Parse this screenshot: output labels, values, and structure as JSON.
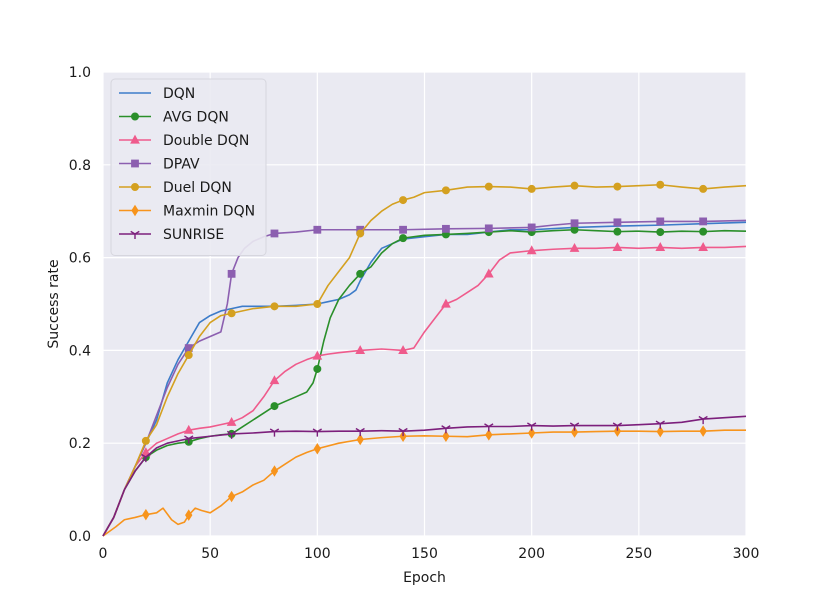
{
  "chart_data": {
    "type": "line",
    "title": "",
    "xlabel": "Epoch",
    "ylabel": "Success rate",
    "xlim": [
      0,
      300
    ],
    "ylim": [
      0.0,
      1.0
    ],
    "xticks": [
      0,
      50,
      100,
      150,
      200,
      250,
      300
    ],
    "yticks": [
      "0.0",
      "0.2",
      "0.4",
      "0.6",
      "0.8",
      "1.0"
    ],
    "grid": true,
    "legend_position": "top-left",
    "background": "#eaeaf2",
    "series": [
      {
        "name": "DQN",
        "color": "#3d7cc9",
        "marker": "none",
        "points": [
          [
            0,
            0.0
          ],
          [
            5,
            0.04
          ],
          [
            10,
            0.1
          ],
          [
            15,
            0.15
          ],
          [
            20,
            0.2
          ],
          [
            25,
            0.25
          ],
          [
            30,
            0.33
          ],
          [
            35,
            0.38
          ],
          [
            40,
            0.42
          ],
          [
            45,
            0.46
          ],
          [
            50,
            0.475
          ],
          [
            55,
            0.485
          ],
          [
            60,
            0.49
          ],
          [
            65,
            0.495
          ],
          [
            70,
            0.495
          ],
          [
            80,
            0.495
          ],
          [
            90,
            0.497
          ],
          [
            100,
            0.5
          ],
          [
            105,
            0.505
          ],
          [
            110,
            0.51
          ],
          [
            115,
            0.52
          ],
          [
            118,
            0.53
          ],
          [
            120,
            0.55
          ],
          [
            125,
            0.59
          ],
          [
            130,
            0.62
          ],
          [
            135,
            0.63
          ],
          [
            140,
            0.64
          ],
          [
            150,
            0.645
          ],
          [
            160,
            0.65
          ],
          [
            170,
            0.65
          ],
          [
            180,
            0.655
          ],
          [
            190,
            0.66
          ],
          [
            200,
            0.66
          ],
          [
            220,
            0.665
          ],
          [
            240,
            0.668
          ],
          [
            260,
            0.67
          ],
          [
            280,
            0.673
          ],
          [
            300,
            0.676
          ]
        ]
      },
      {
        "name": "AVG DQN",
        "color": "#2a8f2a",
        "marker": "circle",
        "marker_x": [
          20,
          40,
          60,
          80,
          100,
          120,
          140,
          160,
          180,
          200,
          220,
          240,
          260,
          280
        ],
        "points": [
          [
            0,
            0.0
          ],
          [
            5,
            0.04
          ],
          [
            10,
            0.1
          ],
          [
            15,
            0.14
          ],
          [
            20,
            0.17
          ],
          [
            25,
            0.185
          ],
          [
            30,
            0.195
          ],
          [
            35,
            0.2
          ],
          [
            40,
            0.203
          ],
          [
            45,
            0.21
          ],
          [
            50,
            0.215
          ],
          [
            55,
            0.218
          ],
          [
            60,
            0.22
          ],
          [
            65,
            0.235
          ],
          [
            70,
            0.25
          ],
          [
            75,
            0.265
          ],
          [
            80,
            0.28
          ],
          [
            85,
            0.29
          ],
          [
            90,
            0.3
          ],
          [
            95,
            0.31
          ],
          [
            98,
            0.33
          ],
          [
            100,
            0.36
          ],
          [
            103,
            0.42
          ],
          [
            106,
            0.47
          ],
          [
            110,
            0.51
          ],
          [
            115,
            0.54
          ],
          [
            120,
            0.565
          ],
          [
            125,
            0.58
          ],
          [
            130,
            0.61
          ],
          [
            135,
            0.63
          ],
          [
            140,
            0.642
          ],
          [
            150,
            0.648
          ],
          [
            160,
            0.65
          ],
          [
            170,
            0.652
          ],
          [
            180,
            0.655
          ],
          [
            190,
            0.658
          ],
          [
            200,
            0.655
          ],
          [
            210,
            0.658
          ],
          [
            220,
            0.66
          ],
          [
            230,
            0.658
          ],
          [
            240,
            0.656
          ],
          [
            250,
            0.657
          ],
          [
            260,
            0.655
          ],
          [
            270,
            0.657
          ],
          [
            280,
            0.656
          ],
          [
            290,
            0.658
          ],
          [
            300,
            0.657
          ]
        ]
      },
      {
        "name": "Double DQN",
        "color": "#ef5b8c",
        "marker": "triangle",
        "marker_x": [
          20,
          40,
          60,
          80,
          100,
          120,
          140,
          160,
          180,
          200,
          220,
          240,
          260,
          280
        ],
        "points": [
          [
            0,
            0.0
          ],
          [
            5,
            0.04
          ],
          [
            10,
            0.1
          ],
          [
            15,
            0.15
          ],
          [
            20,
            0.18
          ],
          [
            25,
            0.2
          ],
          [
            30,
            0.21
          ],
          [
            35,
            0.22
          ],
          [
            40,
            0.228
          ],
          [
            45,
            0.232
          ],
          [
            50,
            0.235
          ],
          [
            55,
            0.24
          ],
          [
            60,
            0.245
          ],
          [
            65,
            0.255
          ],
          [
            70,
            0.27
          ],
          [
            75,
            0.3
          ],
          [
            80,
            0.335
          ],
          [
            85,
            0.355
          ],
          [
            90,
            0.37
          ],
          [
            95,
            0.38
          ],
          [
            100,
            0.388
          ],
          [
            105,
            0.392
          ],
          [
            110,
            0.395
          ],
          [
            120,
            0.4
          ],
          [
            130,
            0.403
          ],
          [
            140,
            0.4
          ],
          [
            145,
            0.405
          ],
          [
            150,
            0.44
          ],
          [
            155,
            0.47
          ],
          [
            160,
            0.5
          ],
          [
            165,
            0.51
          ],
          [
            170,
            0.525
          ],
          [
            175,
            0.54
          ],
          [
            180,
            0.565
          ],
          [
            185,
            0.595
          ],
          [
            190,
            0.61
          ],
          [
            200,
            0.615
          ],
          [
            210,
            0.618
          ],
          [
            220,
            0.62
          ],
          [
            230,
            0.62
          ],
          [
            240,
            0.622
          ],
          [
            250,
            0.62
          ],
          [
            260,
            0.622
          ],
          [
            270,
            0.62
          ],
          [
            280,
            0.622
          ],
          [
            290,
            0.622
          ],
          [
            300,
            0.624
          ]
        ]
      },
      {
        "name": "DPAV",
        "color": "#8c5fb0",
        "marker": "square",
        "marker_x": [
          40,
          60,
          80,
          100,
          120,
          140,
          160,
          180,
          200,
          220,
          240,
          260,
          280
        ],
        "points": [
          [
            0,
            0.0
          ],
          [
            5,
            0.04
          ],
          [
            10,
            0.1
          ],
          [
            15,
            0.15
          ],
          [
            20,
            0.2
          ],
          [
            25,
            0.26
          ],
          [
            30,
            0.32
          ],
          [
            35,
            0.37
          ],
          [
            40,
            0.405
          ],
          [
            45,
            0.42
          ],
          [
            50,
            0.43
          ],
          [
            55,
            0.44
          ],
          [
            58,
            0.5
          ],
          [
            60,
            0.565
          ],
          [
            63,
            0.6
          ],
          [
            66,
            0.62
          ],
          [
            70,
            0.635
          ],
          [
            75,
            0.645
          ],
          [
            80,
            0.652
          ],
          [
            90,
            0.655
          ],
          [
            100,
            0.66
          ],
          [
            120,
            0.66
          ],
          [
            140,
            0.66
          ],
          [
            160,
            0.662
          ],
          [
            180,
            0.663
          ],
          [
            200,
            0.665
          ],
          [
            210,
            0.67
          ],
          [
            220,
            0.674
          ],
          [
            240,
            0.676
          ],
          [
            260,
            0.678
          ],
          [
            280,
            0.678
          ],
          [
            300,
            0.68
          ]
        ]
      },
      {
        "name": "Duel DQN",
        "color": "#d4a020",
        "marker": "circle",
        "marker_x": [
          20,
          40,
          60,
          80,
          100,
          120,
          140,
          160,
          180,
          200,
          220,
          240,
          260,
          280
        ],
        "points": [
          [
            0,
            0.0
          ],
          [
            5,
            0.04
          ],
          [
            10,
            0.1
          ],
          [
            15,
            0.15
          ],
          [
            20,
            0.205
          ],
          [
            25,
            0.24
          ],
          [
            30,
            0.3
          ],
          [
            35,
            0.35
          ],
          [
            40,
            0.39
          ],
          [
            45,
            0.43
          ],
          [
            50,
            0.46
          ],
          [
            55,
            0.475
          ],
          [
            60,
            0.48
          ],
          [
            70,
            0.49
          ],
          [
            80,
            0.495
          ],
          [
            90,
            0.495
          ],
          [
            100,
            0.5
          ],
          [
            105,
            0.54
          ],
          [
            110,
            0.57
          ],
          [
            115,
            0.6
          ],
          [
            120,
            0.652
          ],
          [
            125,
            0.68
          ],
          [
            130,
            0.7
          ],
          [
            135,
            0.715
          ],
          [
            140,
            0.724
          ],
          [
            145,
            0.73
          ],
          [
            150,
            0.74
          ],
          [
            160,
            0.745
          ],
          [
            170,
            0.752
          ],
          [
            180,
            0.753
          ],
          [
            190,
            0.752
          ],
          [
            200,
            0.748
          ],
          [
            210,
            0.752
          ],
          [
            220,
            0.755
          ],
          [
            230,
            0.752
          ],
          [
            240,
            0.753
          ],
          [
            250,
            0.755
          ],
          [
            260,
            0.757
          ],
          [
            270,
            0.752
          ],
          [
            280,
            0.748
          ],
          [
            290,
            0.752
          ],
          [
            300,
            0.755
          ]
        ]
      },
      {
        "name": "Maxmin DQN",
        "color": "#f7941d",
        "marker": "diamond",
        "marker_x": [
          20,
          40,
          60,
          80,
          100,
          120,
          140,
          160,
          180,
          200,
          220,
          240,
          260,
          280
        ],
        "points": [
          [
            0,
            0.0
          ],
          [
            3,
            0.01
          ],
          [
            6,
            0.02
          ],
          [
            10,
            0.035
          ],
          [
            15,
            0.04
          ],
          [
            20,
            0.046
          ],
          [
            25,
            0.05
          ],
          [
            28,
            0.06
          ],
          [
            32,
            0.035
          ],
          [
            35,
            0.025
          ],
          [
            38,
            0.03
          ],
          [
            40,
            0.045
          ],
          [
            43,
            0.06
          ],
          [
            46,
            0.055
          ],
          [
            50,
            0.05
          ],
          [
            55,
            0.065
          ],
          [
            60,
            0.085
          ],
          [
            65,
            0.095
          ],
          [
            70,
            0.11
          ],
          [
            75,
            0.12
          ],
          [
            80,
            0.14
          ],
          [
            85,
            0.155
          ],
          [
            90,
            0.17
          ],
          [
            95,
            0.18
          ],
          [
            100,
            0.188
          ],
          [
            110,
            0.2
          ],
          [
            120,
            0.208
          ],
          [
            130,
            0.212
          ],
          [
            140,
            0.215
          ],
          [
            150,
            0.216
          ],
          [
            160,
            0.215
          ],
          [
            170,
            0.214
          ],
          [
            180,
            0.218
          ],
          [
            190,
            0.22
          ],
          [
            200,
            0.222
          ],
          [
            210,
            0.224
          ],
          [
            220,
            0.224
          ],
          [
            230,
            0.225
          ],
          [
            240,
            0.226
          ],
          [
            250,
            0.226
          ],
          [
            260,
            0.225
          ],
          [
            270,
            0.226
          ],
          [
            280,
            0.226
          ],
          [
            290,
            0.228
          ],
          [
            300,
            0.228
          ]
        ]
      },
      {
        "name": "SUNRISE",
        "color": "#7c1f7c",
        "marker": "tri_down",
        "marker_x": [
          20,
          40,
          60,
          80,
          100,
          120,
          140,
          160,
          180,
          200,
          220,
          240,
          260,
          280
        ],
        "points": [
          [
            0,
            0.0
          ],
          [
            5,
            0.04
          ],
          [
            10,
            0.1
          ],
          [
            15,
            0.14
          ],
          [
            20,
            0.17
          ],
          [
            25,
            0.19
          ],
          [
            30,
            0.2
          ],
          [
            35,
            0.205
          ],
          [
            40,
            0.21
          ],
          [
            50,
            0.215
          ],
          [
            60,
            0.22
          ],
          [
            70,
            0.222
          ],
          [
            80,
            0.225
          ],
          [
            90,
            0.226
          ],
          [
            100,
            0.225
          ],
          [
            110,
            0.226
          ],
          [
            120,
            0.226
          ],
          [
            130,
            0.227
          ],
          [
            140,
            0.226
          ],
          [
            150,
            0.228
          ],
          [
            160,
            0.232
          ],
          [
            170,
            0.235
          ],
          [
            180,
            0.236
          ],
          [
            190,
            0.236
          ],
          [
            200,
            0.238
          ],
          [
            210,
            0.237
          ],
          [
            220,
            0.238
          ],
          [
            230,
            0.238
          ],
          [
            240,
            0.238
          ],
          [
            250,
            0.24
          ],
          [
            260,
            0.242
          ],
          [
            270,
            0.245
          ],
          [
            280,
            0.252
          ],
          [
            290,
            0.255
          ],
          [
            300,
            0.258
          ]
        ]
      }
    ]
  }
}
